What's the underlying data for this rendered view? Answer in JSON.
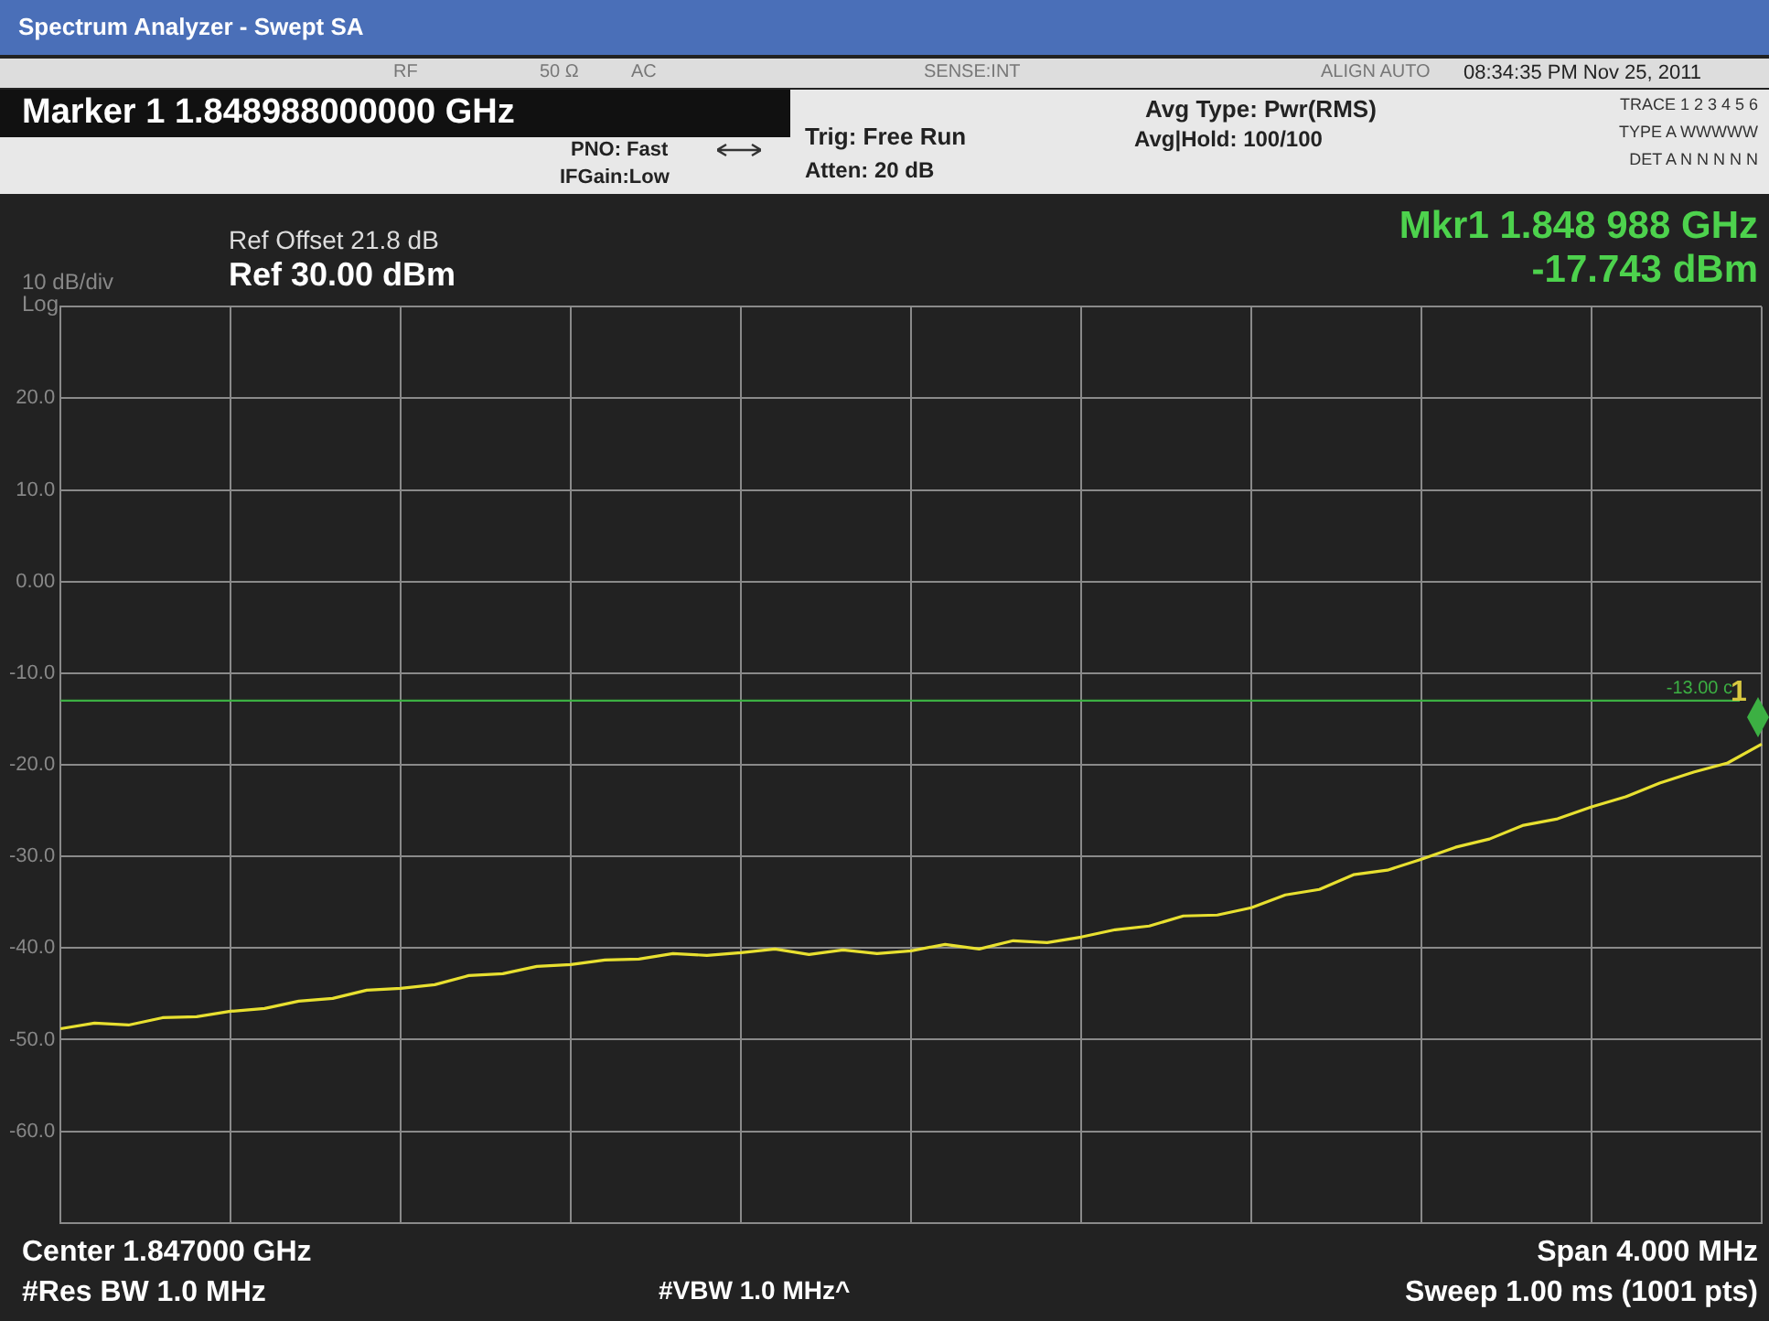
{
  "chart_data": {
    "type": "line",
    "title": "Spectrum Analyzer - Swept SA",
    "categories": [
      null,
      null,
      null,
      null,
      null,
      null,
      null,
      null,
      null,
      null,
      null,
      null,
      null,
      null,
      null,
      null,
      null,
      null,
      null,
      null,
      null,
      null,
      null,
      null,
      null,
      null,
      null,
      null,
      null,
      null,
      null,
      null,
      null,
      null,
      null,
      null,
      null,
      null,
      null,
      null,
      null,
      null,
      null,
      null,
      null,
      null,
      null,
      null,
      null,
      null,
      null
    ],
    "series": [
      {
        "color": "#e8e030",
        "values": [
          -48.8,
          -48.2,
          -48.4,
          -47.6,
          -47.5,
          -46.9,
          -46.6,
          -45.8,
          -45.5,
          -44.6,
          -44.4,
          -44.0,
          -43.0,
          -42.8,
          -42.0,
          -41.8,
          -41.3,
          -41.2,
          -40.6,
          -40.8,
          -40.5,
          -40.1,
          -40.7,
          -40.2,
          -40.6,
          -40.3,
          -39.6,
          -40.1,
          -39.2,
          -39.4,
          -38.8,
          -38.0,
          -37.6,
          -36.5,
          -36.4,
          -35.6,
          -34.2,
          -33.6,
          -32.0,
          -31.5,
          -30.3,
          -29.0,
          -28.1,
          -26.6,
          -25.9,
          -24.6,
          -23.5,
          -22.0,
          -20.8,
          -19.8,
          -17.743
        ]
      }
    ],
    "ylim": [
      -70,
      30
    ],
    "yticks": [
      {
        "value": 30,
        "label": null
      },
      {
        "value": 20,
        "label": "20.0"
      },
      {
        "value": 10,
        "label": "10.0"
      },
      {
        "value": 0,
        "label": "0.00"
      },
      {
        "value": -10,
        "label": "-10.0"
      },
      {
        "value": -20,
        "label": "-20.0"
      },
      {
        "value": -30,
        "label": "-30.0"
      },
      {
        "value": -40,
        "label": "-40.0"
      },
      {
        "value": -50,
        "label": "-50.0"
      },
      {
        "value": -60,
        "label": "-60.0"
      },
      {
        "value": -70,
        "label": null
      }
    ],
    "ref_lines": [
      {
        "axis": "y",
        "value": -13,
        "label": "-13.00 c",
        "color": "#3cb043"
      }
    ],
    "grid": true,
    "legend": false,
    "marker": "none",
    "line_style": "solid",
    "annotations": [
      "RF",
      "50 Ω",
      "AC",
      "SENSE:INT",
      "ALIGN AUTO",
      "08:34:35 PM Nov 25, 2011",
      "Marker 1  1.848988000000 GHz",
      "PNO: Fast",
      "IFGain:Low",
      "Trig: Free Run",
      "Atten: 20 dB",
      "Avg Type: Pwr(RMS)",
      "Avg|Hold: 100/100",
      "TRACE 1 2 3 4 5 6",
      "TYPE A WWWWW",
      "DET A N N N N N",
      "Ref Offset 21.8 dB",
      "Ref 30.00 dBm",
      "10 dB/div",
      "Log",
      "Mkr1 1.848 988 GHz",
      "-17.743 dBm",
      "Center 1.847000 GHz",
      "Span 4.000 MHz",
      "#Res BW 1.0 MHz",
      "#VBW 1.0 MHz^",
      "Sweep  1.00 ms (1001 pts)",
      "1"
    ]
  }
}
